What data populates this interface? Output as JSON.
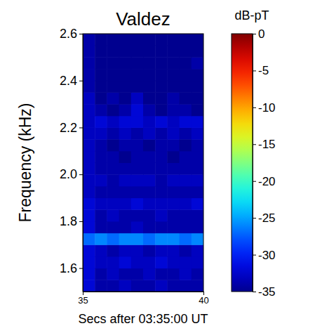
{
  "chart_data": {
    "type": "heatmap",
    "title": "Valdez",
    "x_label": "Secs after 03:35:00 UT",
    "y_label": "Frequency (kHz)",
    "colorbar_label": "dB-pT",
    "xlim": [
      35,
      40
    ],
    "xticks": [
      35,
      40
    ],
    "ylim": [
      1.5,
      2.6
    ],
    "yticks": [
      1.6,
      1.8,
      {
        "value": 2,
        "label": "2.0"
      },
      2.2,
      2.4,
      2.6
    ],
    "zlim": [
      -35,
      0
    ],
    "zticks": [
      0,
      -5,
      -10,
      -15,
      -20,
      -25,
      -30,
      -35
    ],
    "x_edges": [
      35,
      35.5,
      36,
      36.5,
      37,
      37.5,
      38,
      38.5,
      39,
      39.5,
      40
    ],
    "y_edges": [
      1.5,
      1.55,
      1.6,
      1.65,
      1.7,
      1.75,
      1.8,
      1.85,
      1.9,
      1.95,
      2.0,
      2.05,
      2.1,
      2.15,
      2.2,
      2.25,
      2.3,
      2.35,
      2.4,
      2.45,
      2.5,
      2.55,
      2.6
    ],
    "z": [
      [
        -32,
        -34,
        -34,
        -33,
        -34,
        -34,
        -33,
        -34,
        -34,
        -34
      ],
      [
        -32,
        -34,
        -33,
        -34,
        -34,
        -33,
        -34,
        -34,
        -33,
        -34
      ],
      [
        -32,
        -33,
        -33,
        -32,
        -33,
        -33,
        -32,
        -33,
        -33,
        -33
      ],
      [
        -32,
        -33,
        -34,
        -33,
        -33,
        -34,
        -33,
        -33,
        -34,
        -33
      ],
      [
        -27,
        -26,
        -27,
        -26,
        -26,
        -27,
        -26,
        -26,
        -27,
        -26
      ],
      [
        -32,
        -34,
        -34,
        -34,
        -33,
        -34,
        -34,
        -34,
        -34,
        -34
      ],
      [
        -32,
        -34,
        -33,
        -34,
        -34,
        -34,
        -33,
        -34,
        -34,
        -34
      ],
      [
        -32,
        -33,
        -33,
        -33,
        -32,
        -33,
        -33,
        -33,
        -33,
        -32
      ],
      [
        -33,
        -34,
        -34,
        -34,
        -34,
        -34,
        -34,
        -34,
        -34,
        -34
      ],
      [
        -33,
        -33,
        -34,
        -33,
        -33,
        -33,
        -34,
        -33,
        -33,
        -33
      ],
      [
        -33,
        -34,
        -34,
        -34,
        -34,
        -34,
        -34,
        -34,
        -34,
        -34
      ],
      [
        -33,
        -34,
        -34,
        -35,
        -34,
        -34,
        -34,
        -35,
        -34,
        -34
      ],
      [
        -33,
        -34,
        -35,
        -34,
        -34,
        -35,
        -34,
        -34,
        -35,
        -34
      ],
      [
        -33,
        -33,
        -34,
        -33,
        -34,
        -33,
        -34,
        -33,
        -34,
        -33
      ],
      [
        -33,
        -32,
        -33,
        -32,
        -32,
        -33,
        -32,
        -33,
        -32,
        -32
      ],
      [
        -33,
        -34,
        -35,
        -34,
        -32,
        -34,
        -35,
        -34,
        -34,
        -35
      ],
      [
        -33,
        -35,
        -34,
        -35,
        -33,
        -35,
        -35,
        -34,
        -35,
        -35
      ],
      [
        -34,
        -35,
        -35,
        -35,
        -35,
        -35,
        -35,
        -35,
        -35,
        -35
      ],
      [
        -34,
        -35,
        -35,
        -35,
        -35,
        -35,
        -35,
        -35,
        -35,
        -35
      ],
      [
        -34,
        -35,
        -35,
        -35,
        -35,
        -35,
        -35,
        -35,
        -35,
        -34
      ],
      [
        -34,
        -35,
        -35,
        -35,
        -35,
        -35,
        -35,
        -35,
        -35,
        -35
      ],
      [
        -34,
        -35,
        -35,
        -35,
        -35,
        -35,
        -35,
        -35,
        -35,
        -35
      ]
    ]
  }
}
